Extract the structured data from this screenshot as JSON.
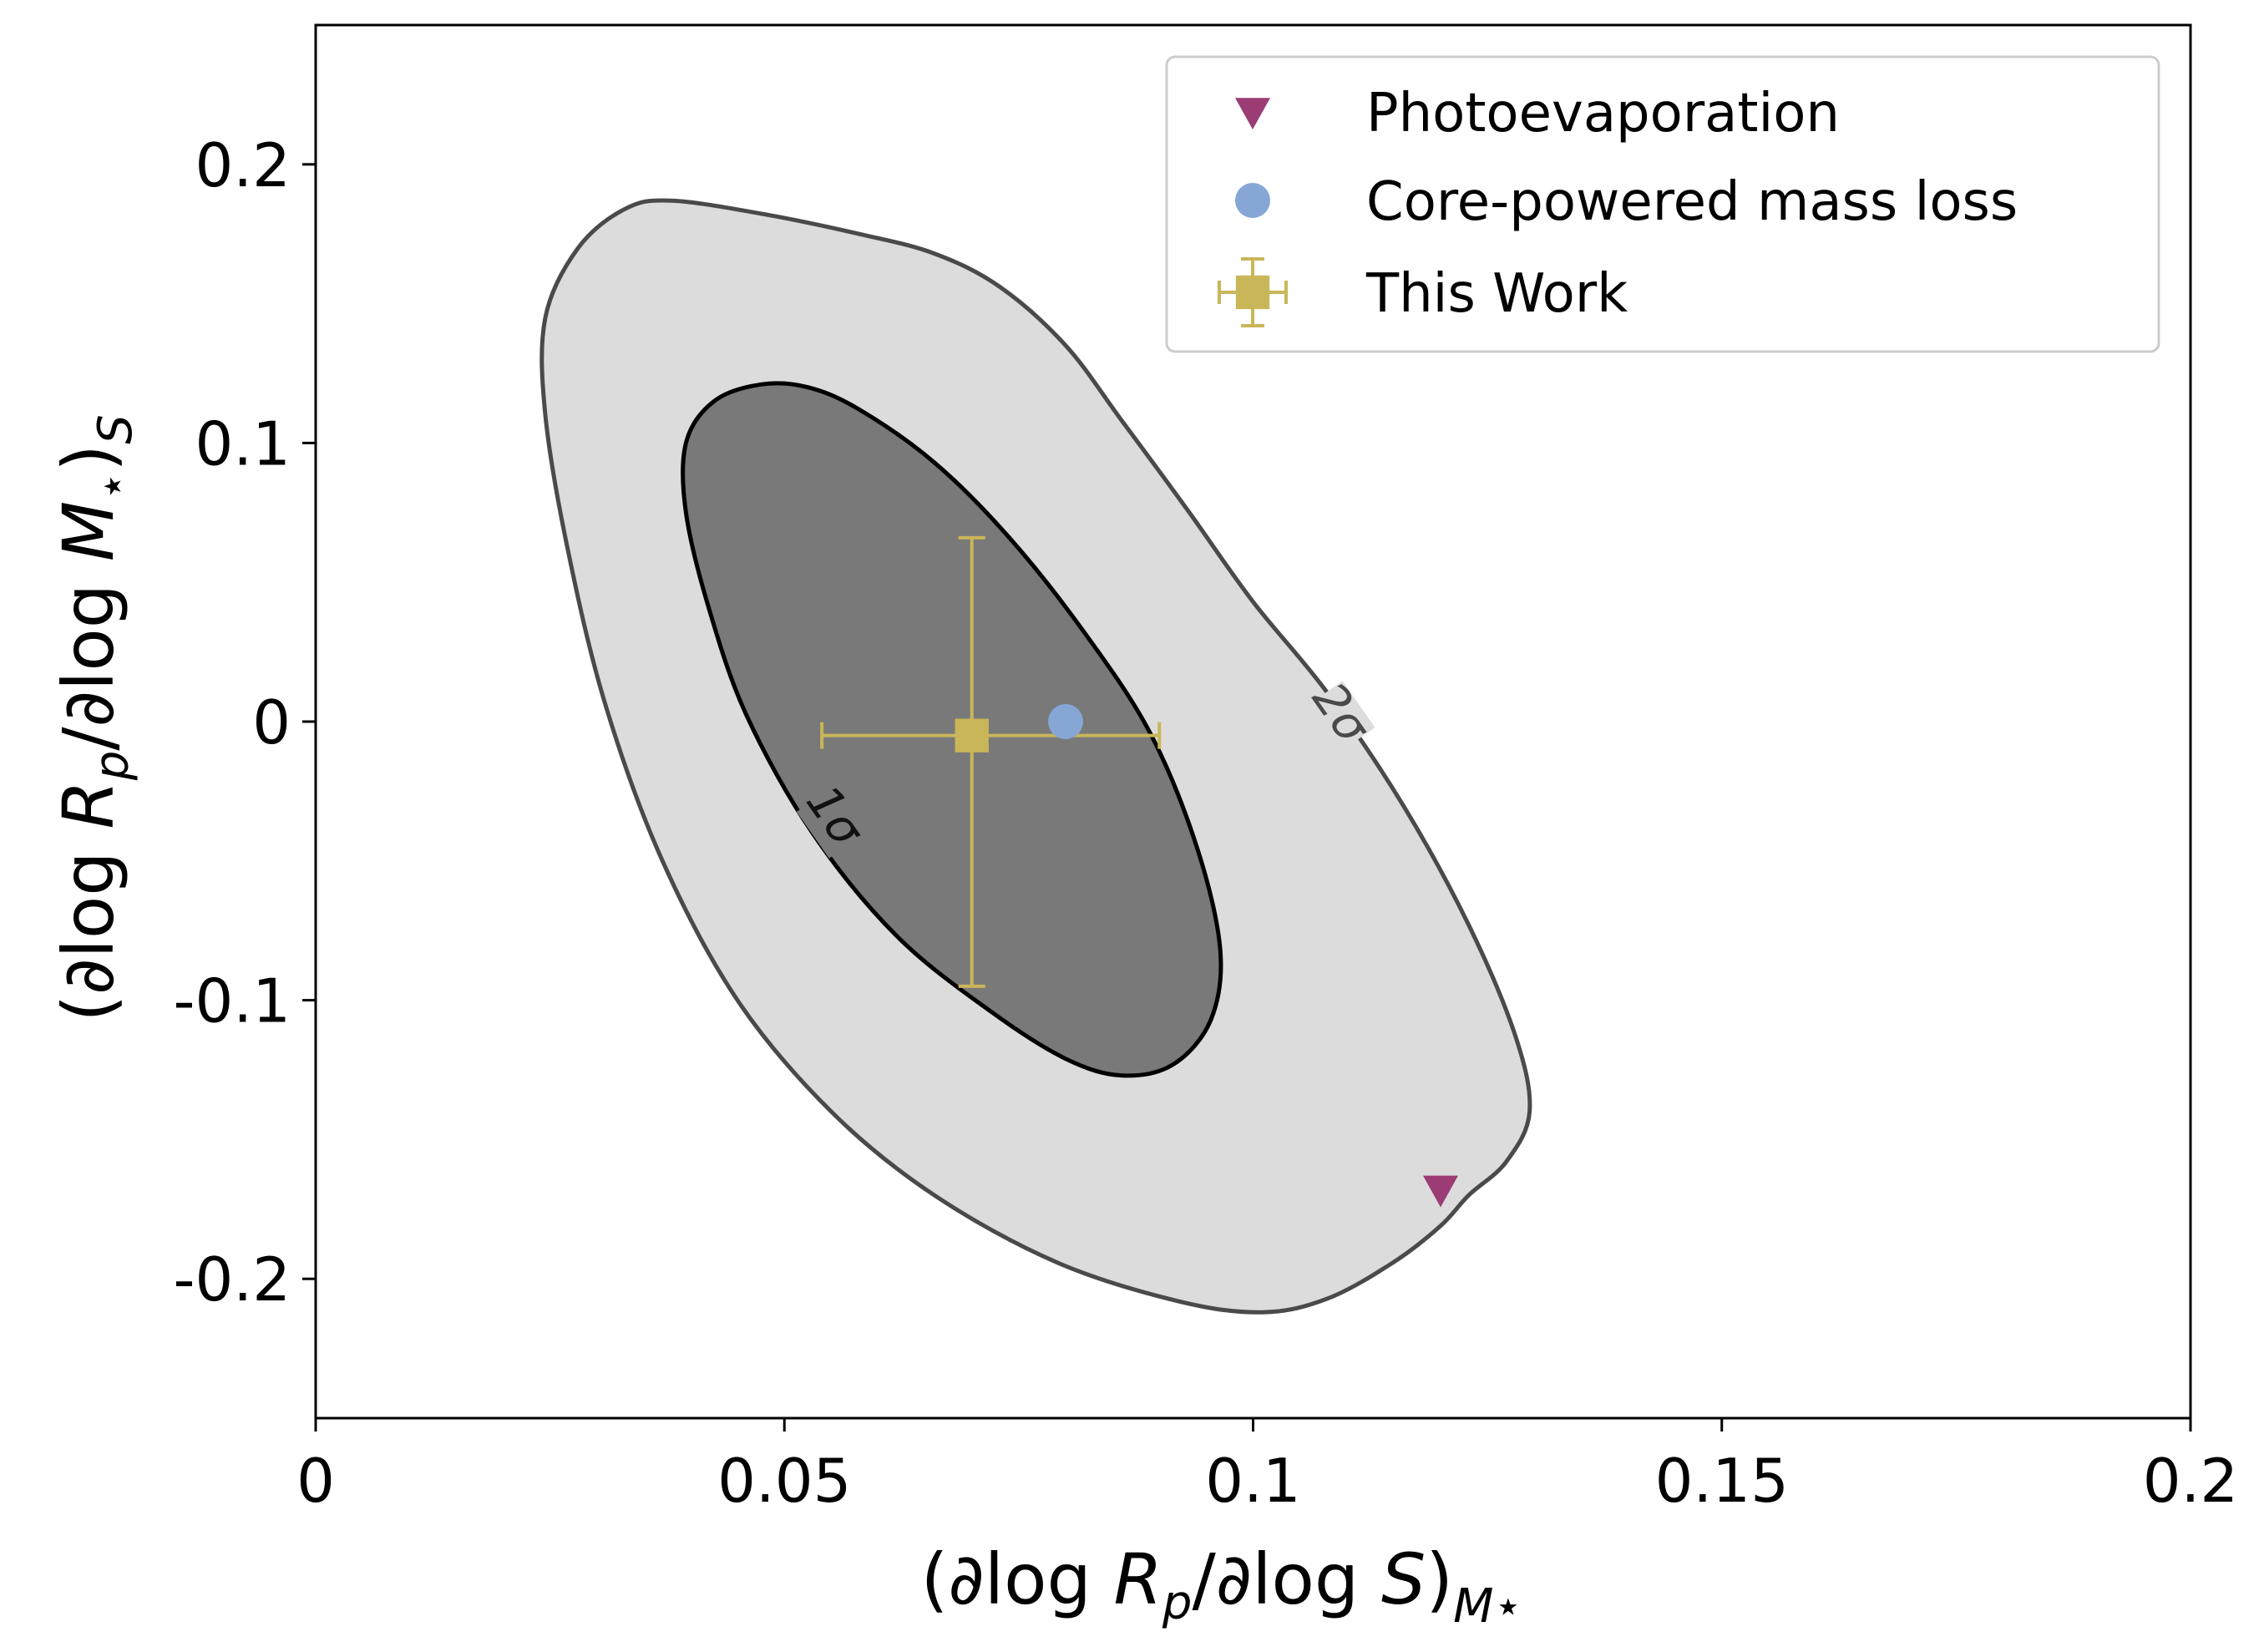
{
  "chart_data": {
    "type": "scatter",
    "xlabel": {
      "prefix": "(∂log ",
      "R": "R",
      "R_sub": "p",
      "mid": "/∂log ",
      "S": "S",
      "close": ")",
      "close_sub": "M⋆"
    },
    "ylabel": {
      "prefix": "(∂log ",
      "R": "R",
      "R_sub": "p",
      "mid": "/∂log ",
      "M": "M",
      "M_sub": "⋆",
      "close": ")",
      "close_sub": "S"
    },
    "xlim": [
      0,
      0.2
    ],
    "ylim": [
      -0.25,
      0.25
    ],
    "x_ticks": [
      {
        "value": 0,
        "label": "0"
      },
      {
        "value": 0.05,
        "label": "0.05"
      },
      {
        "value": 0.1,
        "label": "0.1"
      },
      {
        "value": 0.15,
        "label": "0.15"
      },
      {
        "value": 0.2,
        "label": "0.2"
      }
    ],
    "y_ticks": [
      {
        "value": 0.2,
        "label": "0.2"
      },
      {
        "value": 0.1,
        "label": "0.1"
      },
      {
        "value": 0,
        "label": "0"
      },
      {
        "value": -0.1,
        "label": "-0.1"
      },
      {
        "value": -0.2,
        "label": "-0.2"
      }
    ],
    "grid": false,
    "legend_position": "top-right",
    "contours": [
      {
        "label": "2σ",
        "fill": "#dcdcdc",
        "stroke": "#4a4a4a",
        "label_at": [
          0.108,
          0.0
        ],
        "points": [
          [
            0.038,
            0.187
          ],
          [
            0.048,
            0.182
          ],
          [
            0.058,
            0.175
          ],
          [
            0.066,
            0.168
          ],
          [
            0.073,
            0.156
          ],
          [
            0.08,
            0.135
          ],
          [
            0.086,
            0.108
          ],
          [
            0.093,
            0.076
          ],
          [
            0.1,
            0.043
          ],
          [
            0.108,
            0.01
          ],
          [
            0.116,
            -0.03
          ],
          [
            0.123,
            -0.073
          ],
          [
            0.128,
            -0.113
          ],
          [
            0.1295,
            -0.14
          ],
          [
            0.127,
            -0.158
          ],
          [
            0.123,
            -0.17
          ],
          [
            0.12,
            -0.181
          ],
          [
            0.115,
            -0.194
          ],
          [
            0.108,
            -0.207
          ],
          [
            0.101,
            -0.212
          ],
          [
            0.092,
            -0.208
          ],
          [
            0.079,
            -0.194
          ],
          [
            0.066,
            -0.17
          ],
          [
            0.055,
            -0.14
          ],
          [
            0.045,
            -0.1
          ],
          [
            0.037,
            -0.05
          ],
          [
            0.031,
            0.005
          ],
          [
            0.027,
            0.06
          ],
          [
            0.0245,
            0.11
          ],
          [
            0.0245,
            0.145
          ],
          [
            0.028,
            0.17
          ],
          [
            0.033,
            0.184
          ]
        ]
      },
      {
        "label": "1σ",
        "fill": "#797979",
        "stroke": "#000000",
        "label_at": [
          0.054,
          -0.037
        ],
        "points": [
          [
            0.0475,
            0.121
          ],
          [
            0.0525,
            0.12
          ],
          [
            0.058,
            0.112
          ],
          [
            0.066,
            0.093
          ],
          [
            0.074,
            0.066
          ],
          [
            0.082,
            0.032
          ],
          [
            0.089,
            -0.004
          ],
          [
            0.094,
            -0.045
          ],
          [
            0.0965,
            -0.082
          ],
          [
            0.0955,
            -0.107
          ],
          [
            0.0915,
            -0.123
          ],
          [
            0.086,
            -0.127
          ],
          [
            0.08,
            -0.121
          ],
          [
            0.072,
            -0.104
          ],
          [
            0.062,
            -0.077
          ],
          [
            0.053,
            -0.04
          ],
          [
            0.046,
            0.002
          ],
          [
            0.042,
            0.04
          ],
          [
            0.0395,
            0.075
          ],
          [
            0.0395,
            0.1
          ],
          [
            0.0425,
            0.115
          ]
        ]
      }
    ],
    "series": [
      {
        "name": "Photoevaporation",
        "marker": "triangle-down",
        "color": "#9b3c75",
        "points": [
          [
            0.12,
            -0.168
          ]
        ]
      },
      {
        "name": "Core-powered mass loss",
        "marker": "circle",
        "color": "#86a7d6",
        "points": [
          [
            0.08,
            0.0
          ]
        ]
      },
      {
        "name": "This Work",
        "marker": "square",
        "color": "#c9b659",
        "points": [
          [
            0.07,
            -0.005
          ]
        ],
        "xerr": [
          0.016,
          0.02
        ],
        "yerr": [
          0.09,
          0.071
        ]
      }
    ]
  }
}
